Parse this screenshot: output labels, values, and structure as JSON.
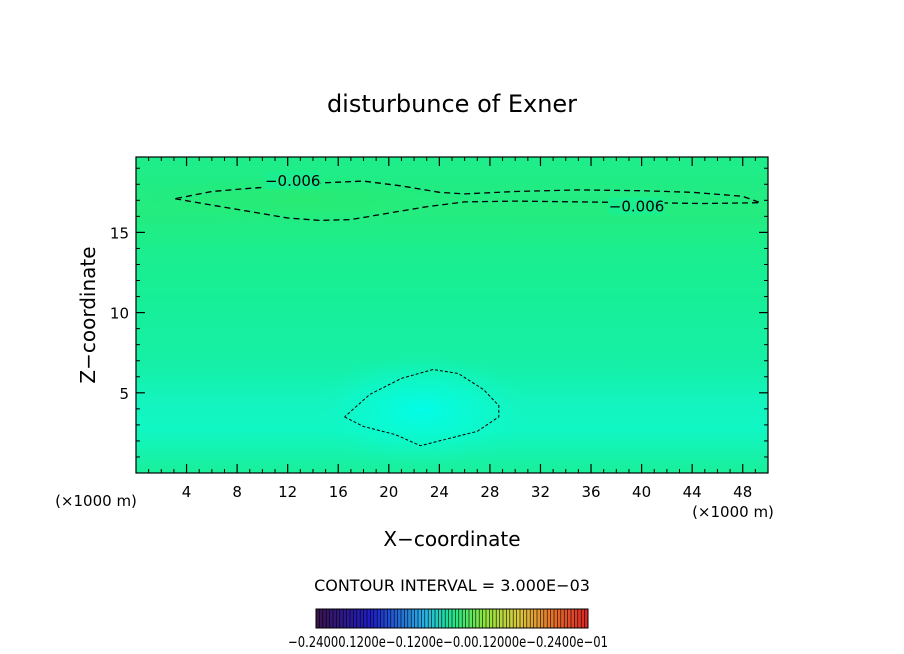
{
  "chart_data": {
    "type": "contour",
    "title": "disturbunce of Exner",
    "xlabel": "X−coordinate",
    "ylabel": "Z−coordinate",
    "x_unit_label": "(×1000 m)",
    "z_unit_label": "(×1000 m)",
    "xlim": [
      0,
      50
    ],
    "ylim": [
      0,
      19.7
    ],
    "x_ticks": [
      4,
      8,
      12,
      16,
      20,
      24,
      28,
      32,
      36,
      40,
      44,
      48
    ],
    "y_ticks": [
      5,
      10,
      15
    ],
    "contour_interval_text": "CONTOUR INTERVAL = 3.000E−03",
    "contours": [
      {
        "level": -0.006,
        "label": "−0.006",
        "points": [
          [
            3.1,
            17.1
          ],
          [
            6,
            16.7
          ],
          [
            9,
            16.3
          ],
          [
            12,
            15.9
          ],
          [
            14.5,
            15.75
          ],
          [
            17,
            15.8
          ],
          [
            20,
            16.2
          ],
          [
            23,
            16.6
          ],
          [
            26,
            16.9
          ],
          [
            30,
            16.95
          ],
          [
            35,
            16.9
          ],
          [
            40,
            16.85
          ],
          [
            45,
            16.8
          ],
          [
            49.4,
            16.85
          ],
          [
            48,
            17.25
          ],
          [
            44,
            17.5
          ],
          [
            40,
            17.6
          ],
          [
            35,
            17.65
          ],
          [
            30,
            17.55
          ],
          [
            26,
            17.4
          ],
          [
            24,
            17.5
          ],
          [
            21,
            17.9
          ],
          [
            18,
            18.2
          ],
          [
            15,
            18.1
          ],
          [
            12,
            17.9
          ],
          [
            9,
            17.75
          ],
          [
            6,
            17.55
          ],
          [
            3.1,
            17.1
          ]
        ],
        "label_positions": [
          [
            12.4,
            18.2
          ],
          [
            39.6,
            16.6
          ]
        ]
      },
      {
        "level": 0.003,
        "label": "",
        "points": [
          [
            16.5,
            3.5
          ],
          [
            18,
            2.9
          ],
          [
            20.5,
            2.4
          ],
          [
            22.5,
            1.7
          ],
          [
            24.5,
            2.1
          ],
          [
            27,
            2.6
          ],
          [
            28.7,
            3.5
          ],
          [
            28.7,
            4.2
          ],
          [
            27.5,
            5.2
          ],
          [
            25.5,
            6.2
          ],
          [
            23.5,
            6.45
          ],
          [
            21,
            5.9
          ],
          [
            18.5,
            4.9
          ],
          [
            16.5,
            3.5
          ]
        ],
        "label_positions": []
      }
    ],
    "colorbar": {
      "vmin": -0.024,
      "vmax": 0.024,
      "tick_labels_text": "−0.24000.1200e−0.1200e−0.00.12000e−0.2400e−01"
    }
  }
}
